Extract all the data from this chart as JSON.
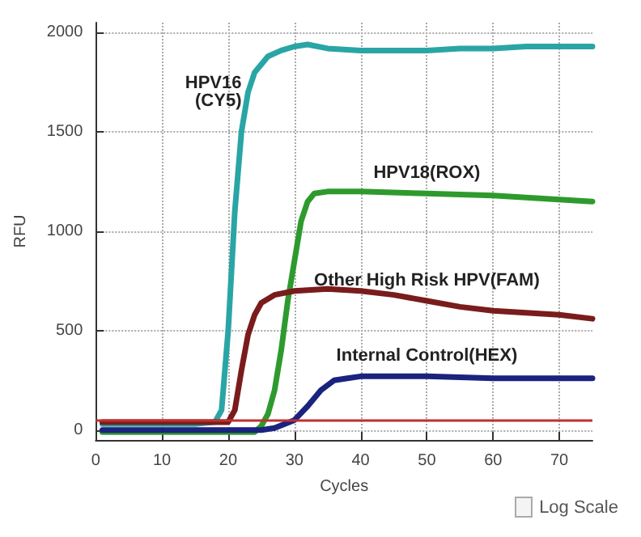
{
  "chart_data": {
    "type": "line",
    "xlabel": "Cycles",
    "ylabel": "RFU",
    "xlim": [
      0,
      75
    ],
    "ylim": [
      -50,
      2050
    ],
    "xticks": [
      0,
      10,
      20,
      30,
      40,
      50,
      60,
      70
    ],
    "yticks": [
      0,
      500,
      1000,
      1500,
      2000
    ],
    "grid": true,
    "legend": false,
    "marker": "none",
    "line_style": "solid",
    "series": [
      {
        "name": "HPV16\n(CY5)",
        "color": "#2aa5a5",
        "x": [
          1,
          5,
          10,
          15,
          18,
          19,
          20,
          21,
          22,
          23,
          24,
          26,
          28,
          30,
          32,
          35,
          40,
          45,
          50,
          55,
          60,
          65,
          70,
          75
        ],
        "values": [
          30,
          30,
          30,
          30,
          40,
          100,
          500,
          1100,
          1500,
          1700,
          1800,
          1880,
          1910,
          1930,
          1940,
          1920,
          1910,
          1910,
          1910,
          1920,
          1920,
          1930,
          1930,
          1930
        ]
      },
      {
        "name": "HPV18(ROX)",
        "color": "#2e9a2e",
        "x": [
          1,
          5,
          10,
          15,
          20,
          24,
          25,
          26,
          27,
          28,
          29,
          30,
          31,
          32,
          33,
          35,
          40,
          50,
          60,
          70,
          75
        ],
        "values": [
          -10,
          -10,
          -10,
          -10,
          -10,
          -10,
          20,
          80,
          200,
          400,
          650,
          850,
          1050,
          1150,
          1190,
          1200,
          1200,
          1190,
          1180,
          1160,
          1150
        ]
      },
      {
        "name": "Other High Risk HPV(FAM)",
        "color": "#7a1c1c",
        "x": [
          1,
          5,
          10,
          15,
          20,
          21,
          22,
          23,
          24,
          25,
          27,
          30,
          35,
          40,
          45,
          50,
          55,
          60,
          65,
          70,
          75
        ],
        "values": [
          40,
          40,
          40,
          40,
          40,
          100,
          300,
          480,
          580,
          640,
          680,
          700,
          710,
          700,
          680,
          650,
          620,
          600,
          590,
          580,
          560
        ]
      },
      {
        "name": "Internal Control(HEX)",
        "color": "#1a237e",
        "x": [
          1,
          5,
          10,
          15,
          20,
          25,
          27,
          30,
          32,
          34,
          36,
          38,
          40,
          50,
          60,
          70,
          75
        ],
        "values": [
          0,
          0,
          0,
          0,
          0,
          0,
          10,
          50,
          120,
          200,
          250,
          260,
          270,
          270,
          260,
          260,
          260
        ]
      }
    ],
    "ref_lines": [
      {
        "axis": "y",
        "value": 50,
        "color": "#c03030"
      }
    ],
    "annotations": [
      "Log Scale"
    ]
  }
}
